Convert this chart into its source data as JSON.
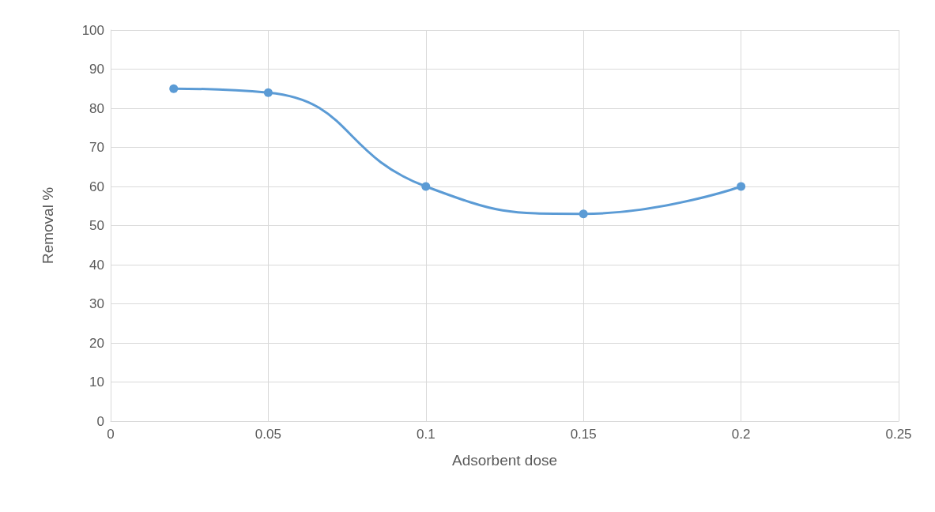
{
  "chart_data": {
    "type": "line",
    "xlabel": "Adsorbent dose",
    "ylabel": "Removal %",
    "x": [
      0.02,
      0.05,
      0.1,
      0.15,
      0.2
    ],
    "series": [
      {
        "color": "#5b9bd5",
        "values": [
          85,
          84,
          60,
          53,
          60
        ]
      }
    ],
    "xlim": [
      0,
      0.25
    ],
    "xticks": [
      0,
      0.05,
      0.1,
      0.15,
      0.2,
      0.25
    ],
    "ylim": [
      0,
      100
    ],
    "yticks": [
      0,
      10,
      20,
      30,
      40,
      50,
      60,
      70,
      80,
      90,
      100
    ],
    "grid": true,
    "marker": "circle",
    "line_style": "solid"
  }
}
